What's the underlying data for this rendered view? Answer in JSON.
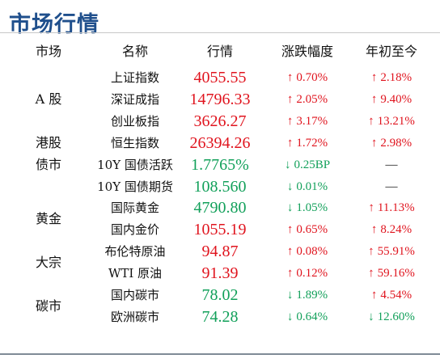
{
  "title": "市场行情",
  "headers": [
    "市场",
    "名称",
    "行情",
    "涨跌幅度",
    "年初至今"
  ],
  "groups": [
    {
      "label": "A 股",
      "start": 0,
      "span": 3
    },
    {
      "label": "港股",
      "start": 3,
      "span": 1
    },
    {
      "label": "债市",
      "start": 4,
      "span": 1
    },
    {
      "label": "黄金",
      "start": 6,
      "span": 2
    },
    {
      "label": "大宗",
      "start": 8,
      "span": 2
    },
    {
      "label": "碳市",
      "start": 10,
      "span": 2
    }
  ],
  "rows": [
    {
      "name": "上证指数",
      "value": "4055.55",
      "vdir": "up",
      "chg": "0.70%",
      "cdir": "up",
      "ytd": "2.18%",
      "ydir": "up"
    },
    {
      "name": "深证成指",
      "value": "14796.33",
      "vdir": "up",
      "chg": "2.05%",
      "cdir": "up",
      "ytd": "9.40%",
      "ydir": "up"
    },
    {
      "name": "创业板指",
      "value": "3626.27",
      "vdir": "up",
      "chg": "3.17%",
      "cdir": "up",
      "ytd": "13.21%",
      "ydir": "up"
    },
    {
      "name": "恒生指数",
      "value": "26394.26",
      "vdir": "up",
      "chg": "1.72%",
      "cdir": "up",
      "ytd": "2.98%",
      "ydir": "up"
    },
    {
      "name": "10Y 国债活跃",
      "value": "1.7765%",
      "vdir": "down",
      "chg": "0.25BP",
      "cdir": "down",
      "ytd": "—",
      "ydir": "flat"
    },
    {
      "name": "10Y 国债期货",
      "value": "108.560",
      "vdir": "down",
      "chg": "0.01%",
      "cdir": "down",
      "ytd": "—",
      "ydir": "flat"
    },
    {
      "name": "国际黄金",
      "value": "4790.80",
      "vdir": "down",
      "chg": "1.05%",
      "cdir": "down",
      "ytd": "11.13%",
      "ydir": "up"
    },
    {
      "name": "国内金价",
      "value": "1055.19",
      "vdir": "up",
      "chg": "0.65%",
      "cdir": "up",
      "ytd": "8.24%",
      "ydir": "up"
    },
    {
      "name": "布伦特原油",
      "value": "94.87",
      "vdir": "up",
      "chg": "0.08%",
      "cdir": "up",
      "ytd": "55.91%",
      "ydir": "up"
    },
    {
      "name": "WTI 原油",
      "value": "91.39",
      "vdir": "up",
      "chg": "0.12%",
      "cdir": "up",
      "ytd": "59.16%",
      "ydir": "up"
    },
    {
      "name": "国内碳市",
      "value": "78.02",
      "vdir": "down",
      "chg": "1.89%",
      "cdir": "down",
      "ytd": "4.54%",
      "ydir": "up"
    },
    {
      "name": "欧洲碳市",
      "value": "74.28",
      "vdir": "down",
      "chg": "0.64%",
      "cdir": "down",
      "ytd": "12.60%",
      "ydir": "down"
    }
  ],
  "arrows": {
    "up": "↑",
    "down": "↓"
  },
  "colors": {
    "up": "#e0141e",
    "down": "#12a05a",
    "title": "#1f4f8c"
  }
}
